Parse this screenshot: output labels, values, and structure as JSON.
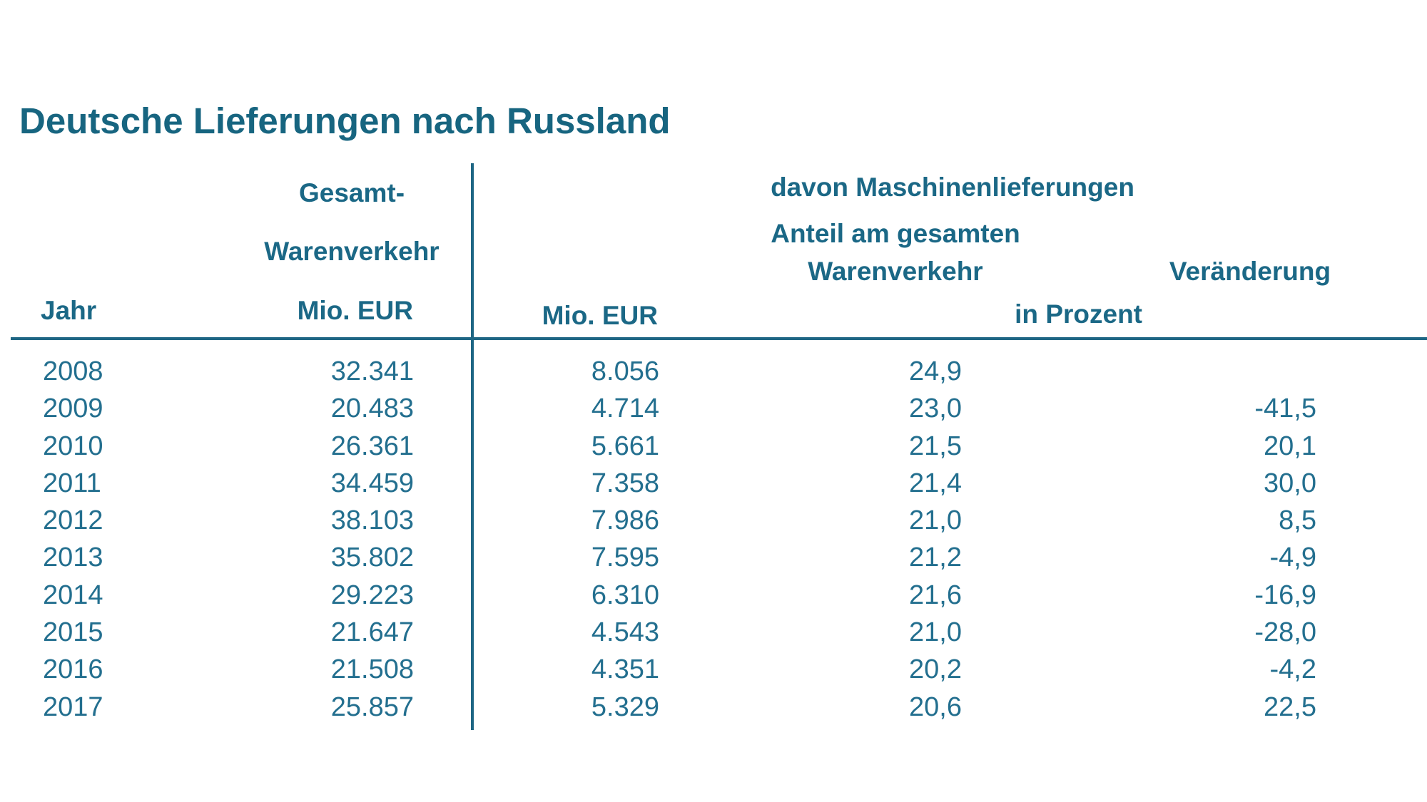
{
  "title": "Deutsche Lieferungen nach Russland",
  "headers": {
    "jahr": "Jahr",
    "gesamt_line1": "Gesamt-",
    "gesamt_line2": "Warenverkehr",
    "gesamt_unit": "Mio. EUR",
    "davon": "davon Maschinenlieferungen",
    "masch_unit": "Mio. EUR",
    "anteil_line1": "Anteil am gesamten",
    "anteil_line2": "Warenverkehr",
    "veraenderung": "Veränderung",
    "in_prozent": "in Prozent"
  },
  "chart_data": {
    "type": "table",
    "title": "Deutsche Lieferungen nach Russland",
    "columns": [
      "Jahr",
      "Gesamt-Warenverkehr Mio. EUR",
      "davon Maschinenlieferungen Mio. EUR",
      "Anteil am gesamten Warenverkehr in Prozent",
      "Veränderung in Prozent"
    ],
    "rows": [
      [
        "2008",
        "32.341",
        "8.056",
        "24,9",
        ""
      ],
      [
        "2009",
        "20.483",
        "4.714",
        "23,0",
        "-41,5"
      ],
      [
        "2010",
        "26.361",
        "5.661",
        "21,5",
        "20,1"
      ],
      [
        "2011",
        "34.459",
        "7.358",
        "21,4",
        "30,0"
      ],
      [
        "2012",
        "38.103",
        "7.986",
        "21,0",
        "8,5"
      ],
      [
        "2013",
        "35.802",
        "7.595",
        "21,2",
        "-4,9"
      ],
      [
        "2014",
        "29.223",
        "6.310",
        "21,6",
        "-16,9"
      ],
      [
        "2015",
        "21.647",
        "4.543",
        "21,0",
        "-28,0"
      ],
      [
        "2016",
        "21.508",
        "4.351",
        "20,2",
        "-4,2"
      ],
      [
        "2017",
        "25.857",
        "5.329",
        "20,6",
        "22,5"
      ]
    ]
  }
}
